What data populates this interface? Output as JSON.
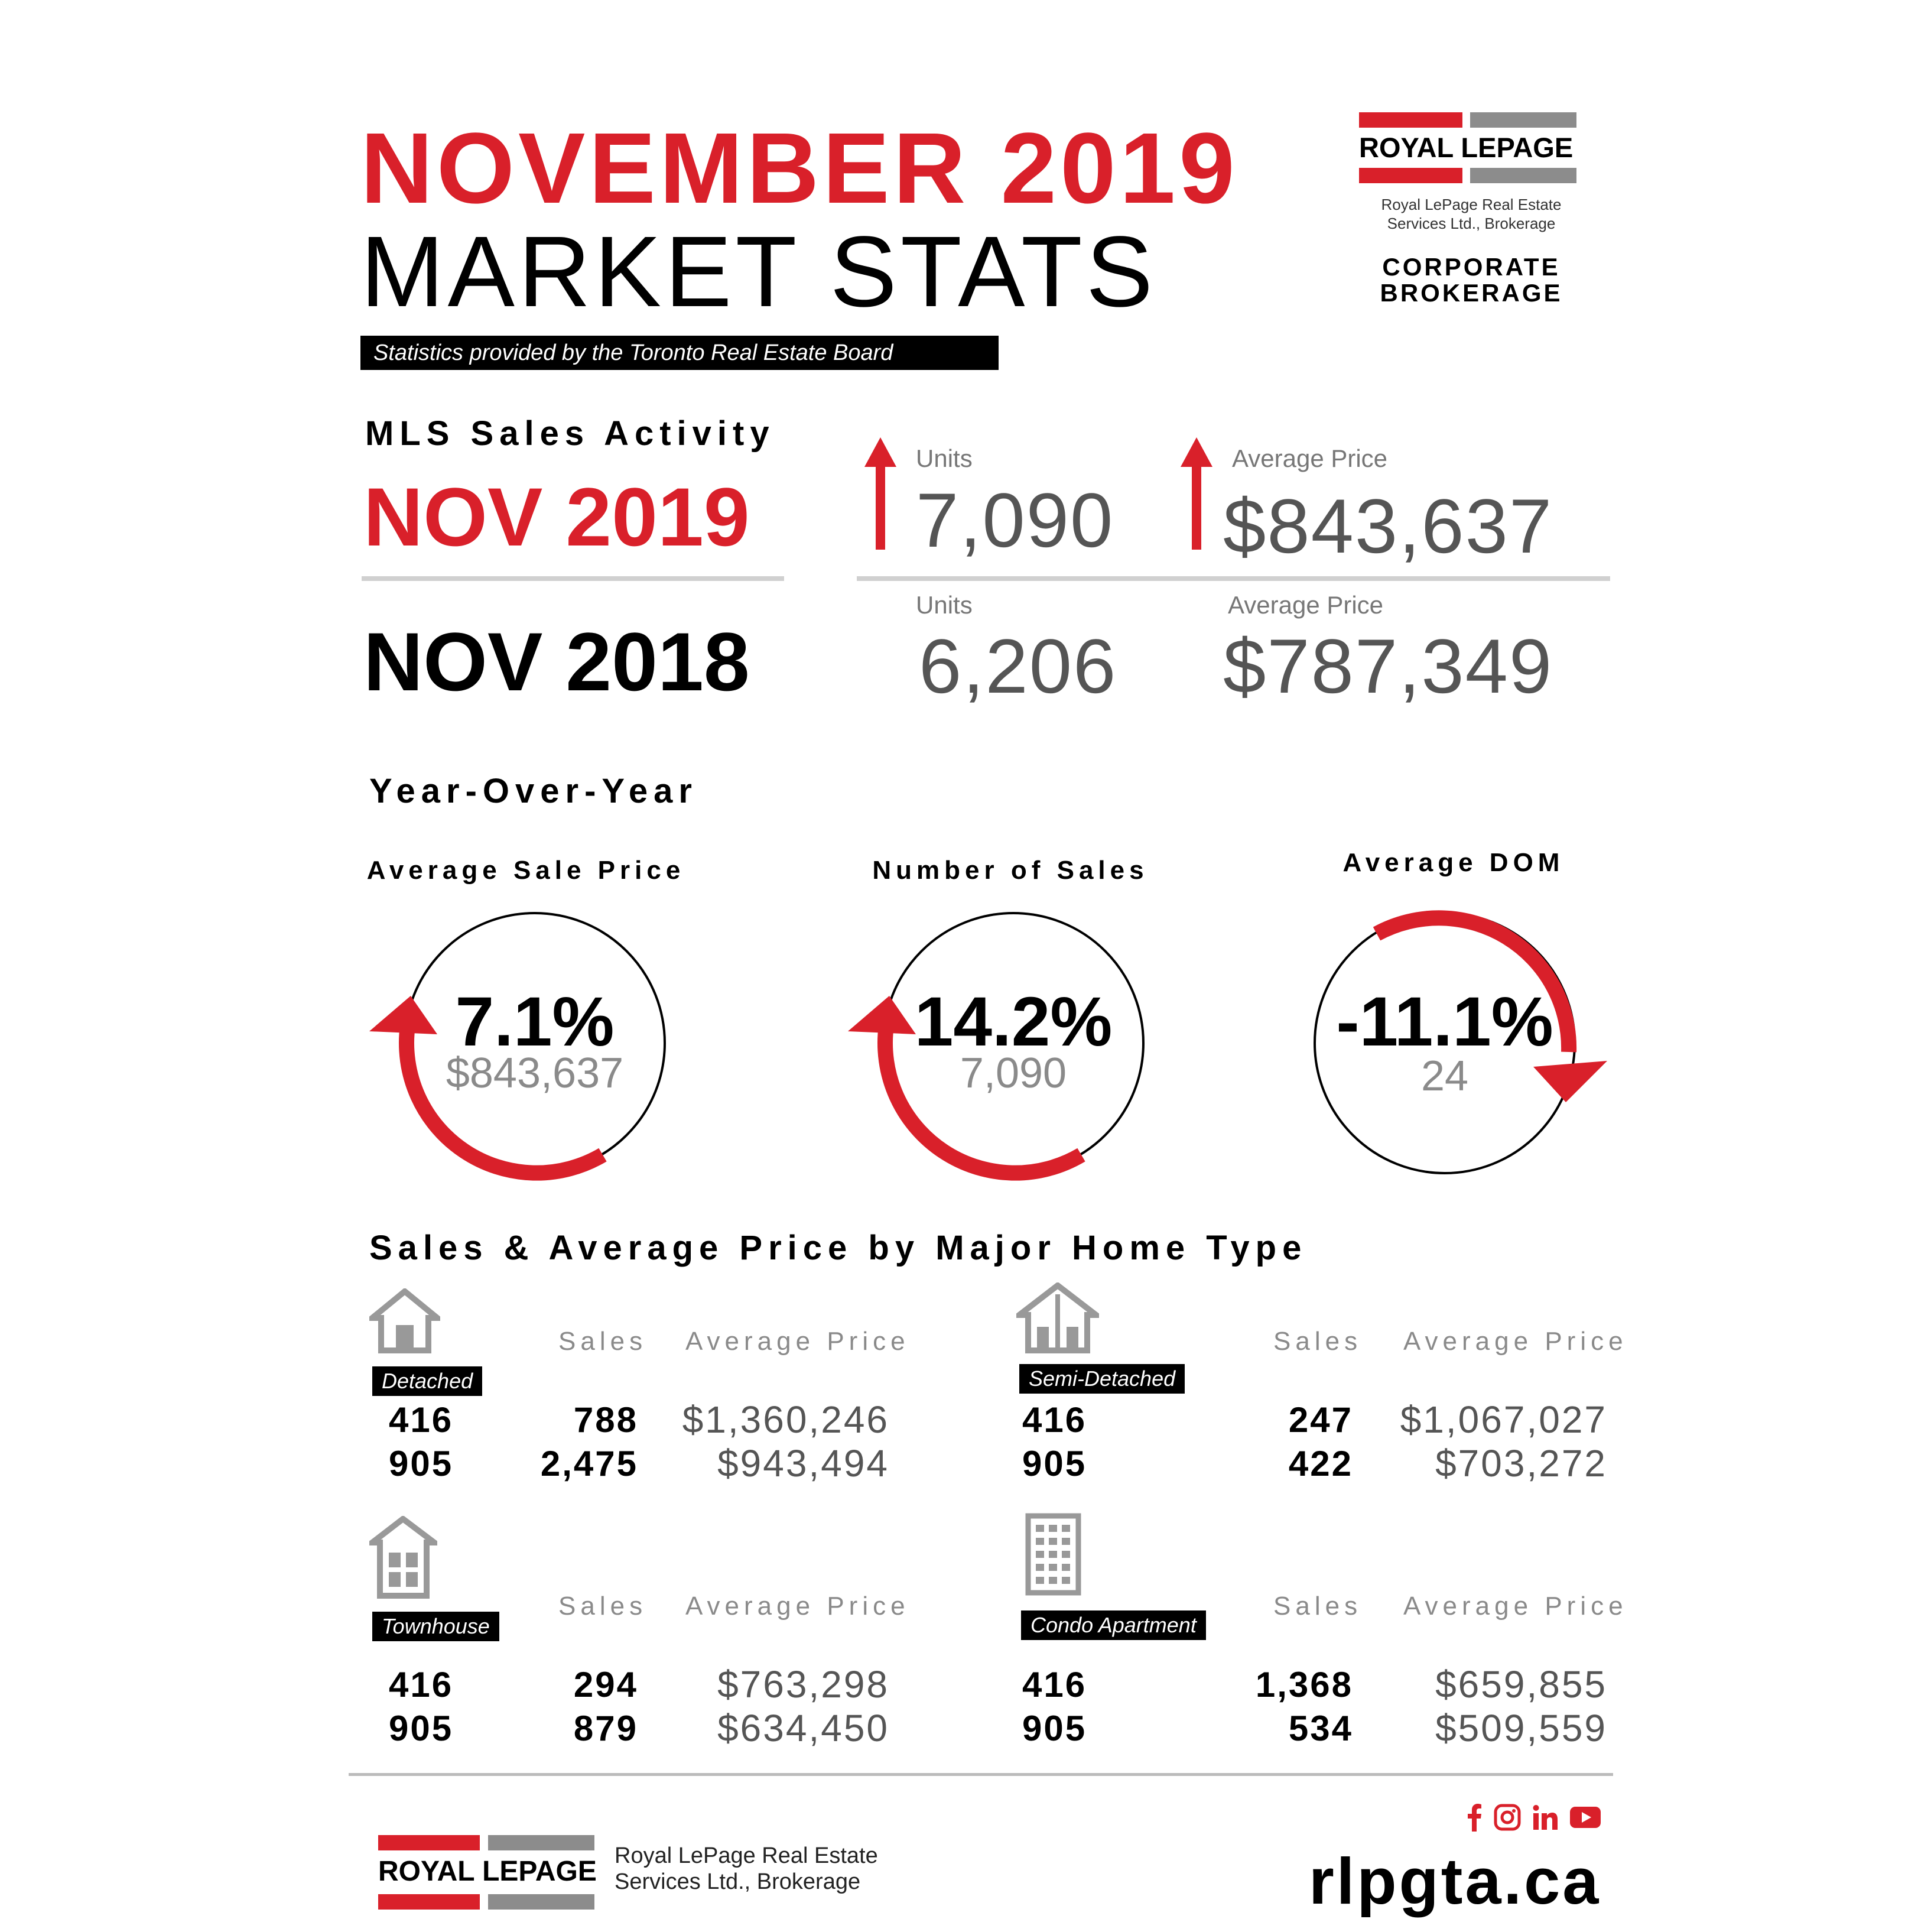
{
  "header": {
    "title_line1": "NOVEMBER 2019",
    "title_line2": "MARKET STATS",
    "source_note": "Statistics provided by the Toronto Real Estate Board"
  },
  "logo_top": {
    "brand": "ROYAL LEPAGE",
    "company": "Royal LePage Real Estate Services Ltd., Brokerage",
    "company_line1": "Royal LePage Real Estate",
    "company_line2": "Services Ltd., Brokerage",
    "division_line1": "CORPORATE",
    "division_line2": "BROKERAGE"
  },
  "mls": {
    "heading": "MLS Sales Activity",
    "current": {
      "label": "NOV 2019",
      "units_label": "Units",
      "units": "7,090",
      "price_label": "Average Price",
      "price": "$843,637"
    },
    "previous": {
      "label": "NOV 2018",
      "units_label": "Units",
      "units": "6,206",
      "price_label": "Average Price",
      "price": "$787,349"
    }
  },
  "yoy": {
    "heading": "Year-Over-Year",
    "metrics": [
      {
        "label": "Average Sale Price",
        "pct": "7.1%",
        "value": "$843,637",
        "direction": "up"
      },
      {
        "label": "Number of Sales",
        "pct": "14.2%",
        "value": "7,090",
        "direction": "up"
      },
      {
        "label": "Average DOM",
        "pct": "-11.1%",
        "value": "24",
        "direction": "down"
      }
    ]
  },
  "home_types": {
    "heading": "Sales & Average Price by Major Home Type",
    "sales_label": "Sales",
    "price_label": "Average Price",
    "types": [
      {
        "name": "Detached",
        "icon": "house-icon",
        "rows": [
          {
            "region": "416",
            "sales": "788",
            "price": "$1,360,246"
          },
          {
            "region": "905",
            "sales": "2,475",
            "price": "$943,494"
          }
        ]
      },
      {
        "name": "Semi-Detached",
        "icon": "semi-detached-house-icon",
        "rows": [
          {
            "region": "416",
            "sales": "247",
            "price": "$1,067,027"
          },
          {
            "region": "905",
            "sales": "422",
            "price": "$703,272"
          }
        ]
      },
      {
        "name": "Townhouse",
        "icon": "townhouse-icon",
        "rows": [
          {
            "region": "416",
            "sales": "294",
            "price": "$763,298"
          },
          {
            "region": "905",
            "sales": "879",
            "price": "$634,450"
          }
        ]
      },
      {
        "name": "Condo Apartment",
        "icon": "apartment-building-icon",
        "rows": [
          {
            "region": "416",
            "sales": "1,368",
            "price": "$659,855"
          },
          {
            "region": "905",
            "sales": "534",
            "price": "$509,559"
          }
        ]
      }
    ]
  },
  "footer": {
    "brand": "ROYAL LEPAGE",
    "company_line1": "Royal LePage Real Estate",
    "company_line2": "Services Ltd., Brokerage",
    "website": "rlpgta.ca",
    "social_icons": [
      "facebook-icon",
      "instagram-icon",
      "linkedin-icon",
      "youtube-icon"
    ]
  },
  "colors": {
    "accent": "#d9202a",
    "brand_gray": "#8c8c8c",
    "text": "#000000"
  }
}
